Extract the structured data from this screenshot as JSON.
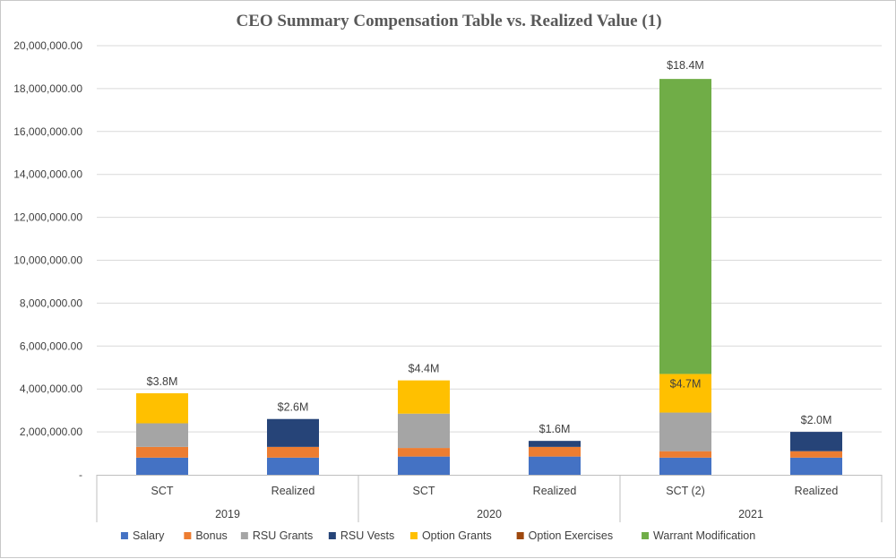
{
  "chart_data": {
    "type": "bar",
    "stacked": true,
    "title": "CEO Summary Compensation Table vs. Realized Value (1)",
    "xlabel": "",
    "ylabel": "",
    "ylim": [
      0,
      20000000
    ],
    "y_ticks": [
      "-",
      "2,000,000.00",
      "4,000,000.00",
      "6,000,000.00",
      "8,000,000.00",
      "10,000,000.00",
      "12,000,000.00",
      "14,000,000.00",
      "16,000,000.00",
      "18,000,000.00",
      "20,000,000.00"
    ],
    "groups": [
      {
        "label": "2019",
        "categories": [
          "SCT",
          "Realized"
        ]
      },
      {
        "label": "2020",
        "categories": [
          "SCT",
          "Realized"
        ]
      },
      {
        "label": "2021",
        "categories": [
          "SCT (2)",
          "Realized"
        ]
      }
    ],
    "categories": [
      "SCT",
      "Realized",
      "SCT",
      "Realized",
      "SCT (2)",
      "Realized"
    ],
    "series": [
      {
        "name": "Salary",
        "color": "#4472C4",
        "values": [
          800000,
          800000,
          850000,
          850000,
          800000,
          800000
        ]
      },
      {
        "name": "Bonus",
        "color": "#ED7D31",
        "values": [
          500000,
          500000,
          400000,
          450000,
          300000,
          300000
        ]
      },
      {
        "name": "RSU Grants",
        "color": "#A5A5A5",
        "values": [
          1100000,
          0,
          1600000,
          0,
          1800000,
          0
        ]
      },
      {
        "name": "RSU Vests",
        "color": "#264478",
        "values": [
          0,
          1300000,
          0,
          280000,
          0,
          900000
        ]
      },
      {
        "name": "Option Grants",
        "color": "#FFC000",
        "values": [
          1400000,
          0,
          1550000,
          0,
          1800000,
          0
        ]
      },
      {
        "name": "Option Exercises",
        "color": "#9E480E",
        "values": [
          0,
          0,
          0,
          0,
          0,
          0
        ]
      },
      {
        "name": "Warrant Modification",
        "color": "#70AD47",
        "values": [
          0,
          0,
          0,
          0,
          13750000,
          0
        ]
      }
    ],
    "data_labels": [
      "$3.8M",
      "$2.6M",
      "$4.4M",
      "$1.6M",
      "$4.7M",
      "$2.0M"
    ],
    "extra_labels": [
      {
        "bar": 4,
        "text": "$18.4M"
      }
    ],
    "grid": true,
    "legend": "bottom"
  }
}
